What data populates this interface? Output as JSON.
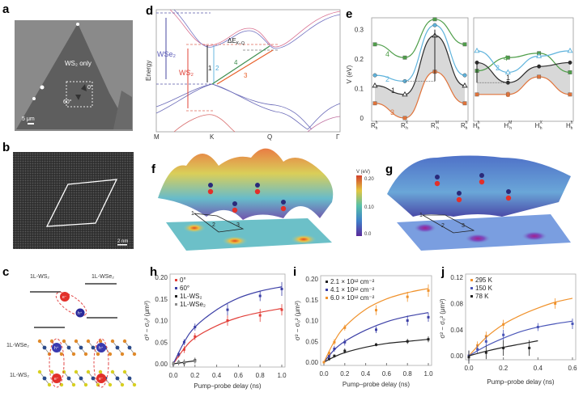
{
  "panels": {
    "a": {
      "label": "a",
      "region": "WS₂ only",
      "angle0": "0°",
      "angle60": "60°",
      "scale": "5 μm"
    },
    "b": {
      "label": "b",
      "scale": "2 nm"
    },
    "c": {
      "label": "c",
      "top_left": "1L-WS₂",
      "top_right": "1L-WSe₂",
      "layer_top": "1L-WSe₂",
      "layer_bottom": "1L-WS₂",
      "electron": "e⁻",
      "hole": "h⁺"
    },
    "d": {
      "label": "d",
      "ylabel": "Energy",
      "wse2": "WSe₂",
      "ws2": "WS₂",
      "delta": "ΔE",
      "delta_sub": "K−Q",
      "transitions": [
        "1",
        "2",
        "3",
        "4"
      ],
      "kpoints": [
        "M",
        "K",
        "Q",
        "Γ"
      ]
    },
    "f": {
      "label": "f",
      "sites": [
        "1",
        "2",
        "3"
      ],
      "colorbar_title": "V (eV)",
      "colorbar_ticks": [
        "0.20",
        "0.10",
        "0.0"
      ]
    },
    "g": {
      "label": "g",
      "sites": [
        "1",
        "2",
        "3"
      ]
    }
  },
  "chart_data": [
    {
      "id": "e",
      "label": "e",
      "type": "line",
      "ylabel": "V (eV)",
      "ylim": [
        0,
        0.34
      ],
      "yticks": [
        0,
        0.1,
        0.2,
        0.3
      ],
      "subplots": [
        {
          "xticks": [
            {
              "b": "R",
              "sub": "h",
              "sup": "h"
            },
            {
              "b": "R",
              "sub": "h",
              "sup": "X"
            },
            {
              "b": "R",
              "sub": "h",
              "sup": "M"
            },
            {
              "b": "R",
              "sub": "h",
              "sup": "h"
            }
          ],
          "series": [
            {
              "name": "4",
              "color": "#4f9e4a",
              "marker": "square",
              "values": [
                0.25,
                0.205,
                0.335,
                0.25
              ]
            },
            {
              "name": "2",
              "color": "#5fb3dc",
              "marker": "circle",
              "values": [
                0.145,
                0.125,
                0.315,
                0.145
              ]
            },
            {
              "name": "1",
              "color": "#2b2b2b",
              "marker": "triangle",
              "values": [
                0.11,
                0.08,
                0.28,
                0.11
              ]
            },
            {
              "name": "3",
              "color": "#e0733a",
              "marker": "square",
              "values": [
                0.05,
                0.0,
                0.157,
                0.05
              ]
            }
          ]
        },
        {
          "xticks": [
            {
              "b": "H",
              "sub": "h",
              "sup": "h"
            },
            {
              "b": "H",
              "sub": "h",
              "sup": "M"
            },
            {
              "b": "H",
              "sub": "h",
              "sup": "X"
            },
            {
              "b": "H",
              "sub": "h",
              "sup": "h"
            }
          ],
          "series": [
            {
              "name": "4",
              "color": "#4f9e4a",
              "marker": "square",
              "values": [
                0.16,
                0.205,
                0.22,
                0.155
              ]
            },
            {
              "name": "2",
              "color": "#5fb3dc",
              "marker": "triangle",
              "values": [
                0.228,
                0.155,
                0.21,
                0.228
              ]
            },
            {
              "name": "1",
              "color": "#2b2b2b",
              "marker": "circle",
              "values": [
                0.188,
                0.12,
                0.175,
                0.188
              ]
            },
            {
              "name": "3",
              "color": "#e0733a",
              "marker": "square",
              "values": [
                0.08,
                0.08,
                0.14,
                0.08
              ]
            }
          ]
        }
      ]
    },
    {
      "id": "h",
      "label": "h",
      "type": "scatter",
      "xlabel": "Pump–probe delay (ns)",
      "ylabel": "σ² − σ₀² (μm²)",
      "xlim": [
        0,
        1.0
      ],
      "ylim": [
        0,
        0.2
      ],
      "xticks": [
        "0.0",
        "0.2",
        "0.4",
        "0.6",
        "0.8",
        "1.0"
      ],
      "yticks": [
        "0.00",
        "0.05",
        "0.10",
        "0.15",
        "0.20"
      ],
      "legend": "top-left",
      "series": [
        {
          "name": "0°",
          "color": "#e2403a",
          "x": [
            0,
            0.05,
            0.1,
            0.2,
            0.5,
            0.8,
            1.0
          ],
          "y": [
            0,
            0.02,
            0.033,
            0.063,
            0.1,
            0.112,
            0.125
          ],
          "err": [
            0.005,
            0.006,
            0.008,
            0.008,
            0.012,
            0.015,
            0.013
          ],
          "fit": {
            "x": [
              0,
              0.1,
              0.2,
              0.4,
              0.6,
              0.8,
              1.0
            ],
            "y": [
              0,
              0.035,
              0.06,
              0.088,
              0.107,
              0.119,
              0.128
            ]
          }
        },
        {
          "name": "60°",
          "color": "#3b3fa6",
          "x": [
            0,
            0.05,
            0.1,
            0.2,
            0.5,
            0.8,
            1.0
          ],
          "y": [
            0,
            0.022,
            0.05,
            0.085,
            0.125,
            0.157,
            0.173
          ],
          "err": [
            0.005,
            0.006,
            0.007,
            0.008,
            0.013,
            0.012,
            0.016
          ],
          "fit": {
            "x": [
              0,
              0.1,
              0.2,
              0.4,
              0.6,
              0.8,
              1.0
            ],
            "y": [
              0,
              0.05,
              0.085,
              0.125,
              0.152,
              0.168,
              0.178
            ]
          }
        },
        {
          "name": "1L-WS₂",
          "color": "#222222",
          "x": [
            0,
            0.05,
            0.1,
            0.2
          ],
          "y": [
            0,
            0.003,
            0.002,
            0.008
          ],
          "err": [
            0.006,
            0.006,
            0.008,
            0.006
          ],
          "fit": {
            "x": [
              0,
              0.2
            ],
            "y": [
              0,
              0.007
            ]
          }
        },
        {
          "name": "1L-WSe₂",
          "color": "#8c8c8c",
          "x": [
            0,
            0.05,
            0.1,
            0.2
          ],
          "y": [
            0.001,
            0.004,
            0.004,
            0.006
          ],
          "err": [
            0.004,
            0.005,
            0.006,
            0.006
          ]
        }
      ]
    },
    {
      "id": "i",
      "label": "i",
      "type": "scatter",
      "xlabel": "Pump–probe delay (ns)",
      "ylabel": "σ² − σ₀² (μm²)",
      "xlim": [
        0,
        1.0
      ],
      "ylim": [
        0,
        0.2
      ],
      "xticks": [
        "0.0",
        "0.2",
        "0.4",
        "0.6",
        "0.8",
        "1.0"
      ],
      "yticks": [
        "0.00",
        "0.05",
        "0.10",
        "0.15",
        "0.20"
      ],
      "legend": "top-left",
      "series": [
        {
          "name": "2.1 × 10¹² cm⁻²",
          "color": "#222222",
          "x": [
            0,
            0.05,
            0.1,
            0.2,
            0.5,
            0.8,
            1.0
          ],
          "y": [
            0,
            0.008,
            0.015,
            0.027,
            0.042,
            0.05,
            0.055
          ],
          "err": [
            0.003,
            0.004,
            0.004,
            0.006,
            0.004,
            0.006,
            0.007
          ],
          "fit": {
            "x": [
              0,
              0.1,
              0.2,
              0.4,
              0.6,
              0.8,
              1.0
            ],
            "y": [
              0,
              0.013,
              0.023,
              0.036,
              0.045,
              0.05,
              0.055
            ]
          }
        },
        {
          "name": "4.1 × 10¹² cm⁻²",
          "color": "#3b3fa6",
          "x": [
            0,
            0.05,
            0.1,
            0.2,
            0.5,
            0.8,
            1.0
          ],
          "y": [
            0,
            0.015,
            0.032,
            0.048,
            0.078,
            0.1,
            0.108
          ],
          "err": [
            0.003,
            0.006,
            0.007,
            0.008,
            0.008,
            0.012,
            0.011
          ],
          "fit": {
            "x": [
              0,
              0.1,
              0.2,
              0.4,
              0.6,
              0.8,
              1.0
            ],
            "y": [
              0,
              0.03,
              0.05,
              0.077,
              0.097,
              0.11,
              0.119
            ]
          }
        },
        {
          "name": "6.0 × 10¹² cm⁻²",
          "color": "#f0922c",
          "x": [
            0,
            0.05,
            0.1,
            0.2,
            0.5,
            0.8,
            1.0
          ],
          "y": [
            0,
            0.022,
            0.048,
            0.083,
            0.125,
            0.157,
            0.172
          ],
          "err": [
            0.003,
            0.006,
            0.007,
            0.007,
            0.012,
            0.012,
            0.015
          ],
          "fit": {
            "x": [
              0,
              0.1,
              0.2,
              0.4,
              0.6,
              0.8,
              1.0
            ],
            "y": [
              0,
              0.05,
              0.085,
              0.127,
              0.152,
              0.167,
              0.177
            ]
          }
        }
      ]
    },
    {
      "id": "j",
      "label": "j",
      "type": "scatter",
      "xlabel": "Pump–probe delay (ns)",
      "ylabel": "σ² − σ₀² (μm²)",
      "xlim": [
        0,
        0.6
      ],
      "ylim": [
        -0.006,
        0.12
      ],
      "xticks": [
        "0.0",
        "0.2",
        "0.4",
        "0.6"
      ],
      "yticks": [
        "0.00",
        "0.04",
        "0.08",
        "0.12"
      ],
      "legend": "top-left",
      "series": [
        {
          "name": "295 K",
          "color": "#f0922c",
          "x": [
            0,
            0.05,
            0.1,
            0.2,
            0.5
          ],
          "y": [
            0,
            0.016,
            0.03,
            0.048,
            0.08
          ],
          "err": [
            0.006,
            0.006,
            0.007,
            0.007,
            0.008
          ],
          "fit": {
            "x": [
              0,
              0.1,
              0.2,
              0.3,
              0.4,
              0.5,
              0.6
            ],
            "y": [
              0,
              0.028,
              0.048,
              0.062,
              0.073,
              0.082,
              0.088
            ]
          }
        },
        {
          "name": "150 K",
          "color": "#4a56b8",
          "x": [
            0,
            0.05,
            0.1,
            0.2,
            0.4,
            0.6
          ],
          "y": [
            0,
            0.01,
            0.022,
            0.032,
            0.044,
            0.049
          ],
          "err": [
            0.008,
            0.006,
            0.008,
            0.008,
            0.006,
            0.008
          ],
          "fit": {
            "x": [
              0,
              0.1,
              0.2,
              0.3,
              0.4,
              0.5,
              0.6
            ],
            "y": [
              0,
              0.015,
              0.027,
              0.037,
              0.044,
              0.049,
              0.053
            ]
          }
        },
        {
          "name": "78 K",
          "color": "#222222",
          "x": [
            0,
            0.1,
            0.2,
            0.35
          ],
          "y": [
            -0.002,
            0.005,
            0.012,
            0.012
          ],
          "err": [
            0.01,
            0.01,
            0.012,
            0.012
          ],
          "fit": {
            "x": [
              0,
              0.1,
              0.2,
              0.3,
              0.4
            ],
            "y": [
              0,
              0.007,
              0.013,
              0.018,
              0.023
            ]
          }
        }
      ]
    }
  ]
}
